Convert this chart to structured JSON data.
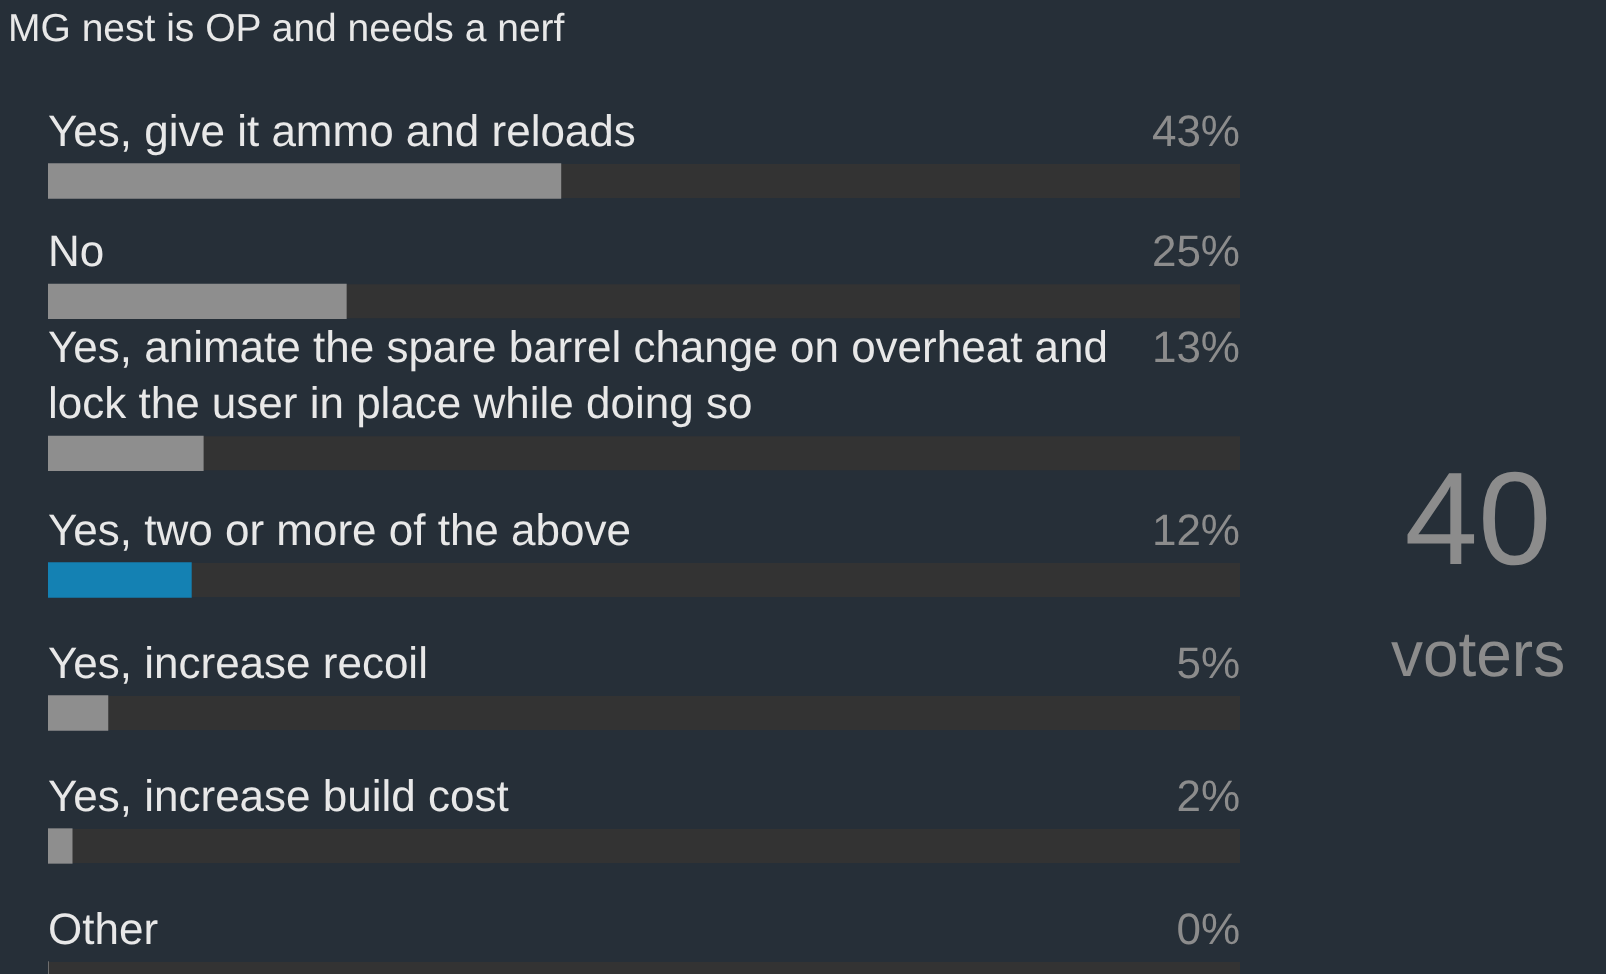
{
  "chart_data": {
    "type": "bar",
    "orientation": "horizontal",
    "title": "MG nest is OP and needs a nerf",
    "categories": [
      "Yes, give it ammo and reloads",
      "No",
      "Yes, animate the spare barrel change on overheat and lock the user in place while doing so",
      "Yes, two or more of the above",
      "Yes, increase recoil",
      "Yes, increase build cost",
      "Other"
    ],
    "values": [
      43,
      25,
      13,
      12,
      5,
      2,
      0
    ],
    "colors": [
      "#8e8e8e",
      "#8e8e8e",
      "#8e8e8e",
      "#1481b3",
      "#8e8e8e",
      "#8e8e8e",
      "#8e8e8e"
    ],
    "value_labels": [
      "43%",
      "25%",
      "13%",
      "12%",
      "5%",
      "2%",
      "0%"
    ],
    "xlim": [
      0,
      100
    ],
    "tick_labels": "y",
    "annotations": [
      "40",
      "voters"
    ]
  }
}
